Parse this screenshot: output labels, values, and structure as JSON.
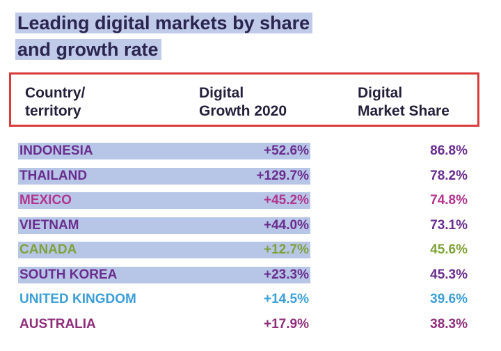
{
  "title": {
    "line1": "Leading digital markets by share",
    "line2": "and growth rate"
  },
  "headers": {
    "country": [
      "Country/",
      "territory"
    ],
    "growth": [
      "Digital",
      "Growth 2020"
    ],
    "share": [
      "Digital",
      "Market Share"
    ]
  },
  "rows": [
    {
      "country": "INDONESIA",
      "growth": "+52.6%",
      "share": "86.8%",
      "color": "#6a2d8f",
      "highlight": true
    },
    {
      "country": "THAILAND",
      "growth": "+129.7%",
      "share": "78.2%",
      "color": "#6a2d8f",
      "highlight": true
    },
    {
      "country": "MEXICO",
      "growth": "+45.2%",
      "share": "74.8%",
      "color": "#b3358f",
      "highlight": true
    },
    {
      "country": "VIETNAM",
      "growth": "+44.0%",
      "share": "73.1%",
      "color": "#6a2d8f",
      "highlight": true
    },
    {
      "country": "CANADA",
      "growth": "+12.7%",
      "share": "45.6%",
      "color": "#7fa23a",
      "highlight": true
    },
    {
      "country": "SOUTH KOREA",
      "growth": "+23.3%",
      "share": "45.3%",
      "color": "#6a2d8f",
      "highlight": true
    },
    {
      "country": "UNITED KINGDOM",
      "growth": "+14.5%",
      "share": "39.6%",
      "color": "#3b9fd8",
      "highlight": false
    },
    {
      "country": "AUSTRALIA",
      "growth": "+17.9%",
      "share": "38.3%",
      "color": "#8f2d7a",
      "highlight": false
    }
  ],
  "colors": {
    "title": "#2b2550",
    "title_highlight": "#bfcbe8",
    "header_border": "#d93a3a",
    "row_highlight": "#b7c6e6"
  }
}
